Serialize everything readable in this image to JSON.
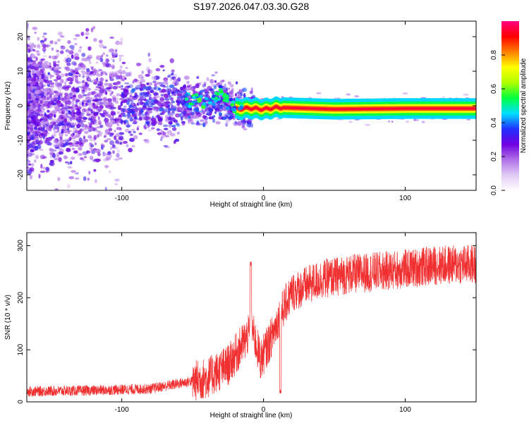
{
  "title": "S197.2026.047.03.30.G28",
  "chart_data": [
    {
      "type": "heatmap",
      "xlabel": "Height of straight line (km)",
      "ylabel": "Frequency (Hz)",
      "xlim": [
        -167,
        150
      ],
      "ylim": [
        -24.5,
        24.5
      ],
      "xticks": [
        -100,
        0,
        100
      ],
      "yticks": [
        -20,
        -10,
        0,
        10,
        20
      ],
      "colorbar": {
        "label": "Normalized spectral amplitude",
        "range": [
          0,
          1
        ],
        "ticks": [
          0.0,
          0.2,
          0.4,
          0.6,
          0.8
        ],
        "colors": [
          "#ffffff",
          "#e0c8f4",
          "#b070e8",
          "#7000e0",
          "#2030ff",
          "#00e0ff",
          "#00ff40",
          "#b0ff00",
          "#ffff00",
          "#ff8000",
          "#ff0000",
          "#ff0080"
        ]
      },
      "ridge": {
        "description_points": [
          {
            "x": -40,
            "y": 1.5
          },
          {
            "x": -30,
            "y": 3.5
          },
          {
            "x": -20,
            "y": -1.0
          },
          {
            "x": -10,
            "y": -0.7
          },
          {
            "x": 0,
            "y": -1.0
          },
          {
            "x": 10,
            "y": -0.5
          },
          {
            "x": 50,
            "y": -1.0
          },
          {
            "x": 100,
            "y": -0.8
          },
          {
            "x": 150,
            "y": -0.8
          }
        ],
        "peak_amplitude": 1.0
      }
    },
    {
      "type": "line",
      "xlabel": "Height of straight line (km)",
      "ylabel": "SNR (10 * v/v)",
      "xlim": [
        -167,
        150
      ],
      "ylim": [
        0,
        325
      ],
      "xticks": [
        -100,
        0,
        100
      ],
      "yticks": [
        0,
        100,
        200,
        300
      ],
      "color": "#f03030",
      "trend": [
        {
          "x": -167,
          "y": 20
        },
        {
          "x": -120,
          "y": 22
        },
        {
          "x": -80,
          "y": 25
        },
        {
          "x": -60,
          "y": 35
        },
        {
          "x": -40,
          "y": 45
        },
        {
          "x": -25,
          "y": 70
        },
        {
          "x": -15,
          "y": 110
        },
        {
          "x": -8,
          "y": 140
        },
        {
          "x": -2,
          "y": 80
        },
        {
          "x": 5,
          "y": 120
        },
        {
          "x": 12,
          "y": 170
        },
        {
          "x": 20,
          "y": 210
        },
        {
          "x": 40,
          "y": 235
        },
        {
          "x": 60,
          "y": 245
        },
        {
          "x": 80,
          "y": 250
        },
        {
          "x": 100,
          "y": 255
        },
        {
          "x": 120,
          "y": 262
        },
        {
          "x": 150,
          "y": 265
        }
      ],
      "peaks": [
        {
          "x": -9,
          "y": 265
        },
        {
          "x": 12,
          "y": 20
        }
      ]
    }
  ]
}
